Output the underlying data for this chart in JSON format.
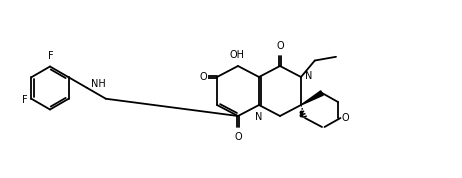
{
  "bg_color": "#ffffff",
  "line_color": "#000000",
  "lw": 1.3,
  "fs": 7.0,
  "fig_w": 4.62,
  "fig_h": 1.78,
  "xlim": [
    0,
    4.62
  ],
  "ylim": [
    0,
    1.78
  ]
}
